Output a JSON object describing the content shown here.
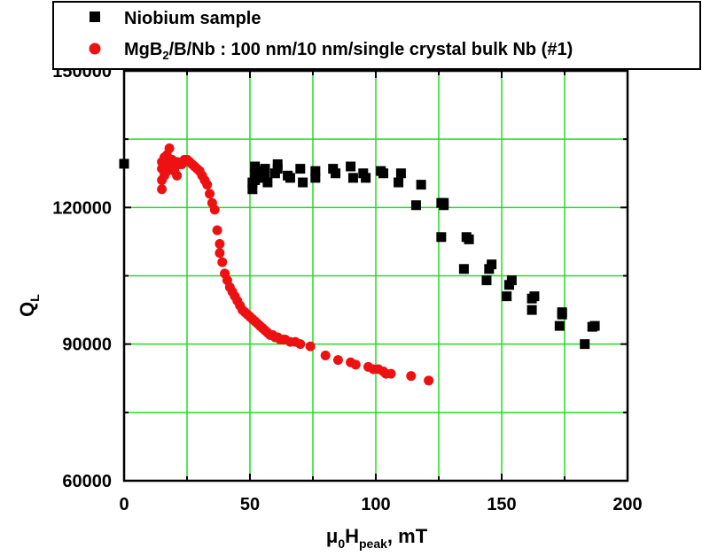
{
  "chart_data": {
    "type": "scatter",
    "xlabel": {
      "main": "μ",
      "sub1": "0",
      "mid": "H",
      "sub2": "peak",
      "tail": ", mT"
    },
    "ylabel": {
      "main": "Q",
      "sub": "L"
    },
    "xlim": [
      0,
      200
    ],
    "ylim": [
      60000,
      150000
    ],
    "x_ticks": [
      0,
      50,
      100,
      150,
      200
    ],
    "y_ticks": [
      60000,
      90000,
      120000,
      150000
    ],
    "x_tick_labels": [
      "0",
      "50",
      "100",
      "150",
      "200"
    ],
    "y_tick_labels": [
      "60000",
      "90000",
      "120000",
      "150000"
    ],
    "grid": true,
    "grid_color": "#22dd22",
    "legend_position": "top",
    "legend": [
      {
        "marker": "square",
        "color": "#000000",
        "label": "Niobium sample"
      },
      {
        "marker": "circle",
        "color": "#ee1111",
        "label_parts": [
          "MgB",
          "2",
          "/B/Nb : 100 nm/10 nm/single crystal bulk Nb (#1)"
        ]
      }
    ],
    "series": [
      {
        "name": "Niobium sample",
        "marker": "square",
        "color": "#000000",
        "x": [
          0,
          51,
          51,
          52,
          52,
          52,
          53,
          53,
          55,
          56,
          56,
          57,
          60,
          61,
          61,
          65,
          66,
          70,
          71,
          76,
          76,
          83,
          84,
          90,
          91,
          95,
          96,
          102,
          103,
          109,
          110,
          116,
          118,
          126,
          126,
          127,
          127,
          135,
          136,
          137,
          144,
          145,
          146,
          152,
          153,
          154,
          162,
          162,
          163,
          173,
          174,
          174,
          183,
          186,
          187
        ],
        "y": [
          129600,
          124000,
          125500,
          127500,
          129000,
          126000,
          128000,
          126500,
          126500,
          127500,
          128500,
          125500,
          127500,
          128500,
          129500,
          127000,
          126500,
          128500,
          125500,
          128000,
          126500,
          128500,
          127500,
          129000,
          126500,
          127500,
          126500,
          128000,
          127500,
          125500,
          127500,
          120500,
          125000,
          121000,
          113500,
          120500,
          121000,
          106500,
          113500,
          113000,
          104000,
          106500,
          107500,
          100500,
          103000,
          104000,
          97500,
          100000,
          100500,
          94000,
          96500,
          97000,
          90000,
          93800,
          94000
        ]
      },
      {
        "name": "MgB2/B/Nb : 100 nm/10 nm/single crystal bulk Nb (#1)",
        "marker": "circle",
        "color": "#ee1111",
        "x": [
          15,
          15,
          15,
          15,
          16,
          16,
          16,
          17,
          17,
          17,
          18,
          18,
          19,
          20,
          21,
          21,
          22,
          23,
          24,
          25,
          26,
          27,
          28,
          29,
          30,
          31,
          32,
          33,
          34,
          35,
          36,
          37,
          38,
          38,
          39,
          40,
          41,
          42,
          43,
          44,
          45,
          46,
          47,
          48,
          49,
          50,
          51,
          52,
          53,
          54,
          55,
          56,
          57,
          58,
          59,
          60,
          61,
          62,
          63,
          64,
          66,
          68,
          70,
          74,
          80,
          85,
          90,
          92,
          97,
          99,
          101,
          103,
          104,
          106,
          114,
          121
        ],
        "y": [
          124000,
          126000,
          128500,
          130000,
          127000,
          129500,
          131000,
          128000,
          130000,
          131500,
          129000,
          133000,
          130500,
          128000,
          130000,
          127000,
          129500,
          129500,
          130500,
          130500,
          130000,
          129500,
          129000,
          128500,
          128000,
          127000,
          126000,
          125000,
          123000,
          121000,
          119500,
          115000,
          112000,
          110000,
          108000,
          105500,
          104000,
          102500,
          101500,
          100500,
          99500,
          98500,
          97500,
          97000,
          96500,
          96000,
          95500,
          95000,
          94500,
          94000,
          93500,
          93000,
          92500,
          92000,
          92000,
          91500,
          91500,
          91000,
          91000,
          91000,
          90500,
          90500,
          90000,
          89500,
          87500,
          86500,
          86000,
          85500,
          85000,
          84500,
          84500,
          84000,
          83500,
          83500,
          83000,
          82000
        ]
      }
    ]
  }
}
